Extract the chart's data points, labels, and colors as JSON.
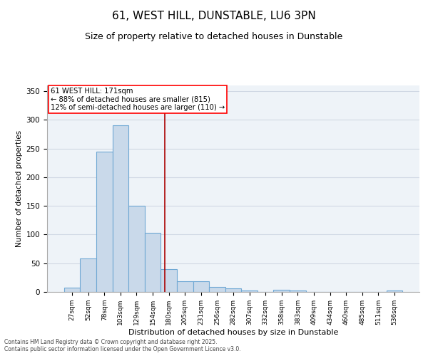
{
  "title": "61, WEST HILL, DUNSTABLE, LU6 3PN",
  "subtitle": "Size of property relative to detached houses in Dunstable",
  "xlabel": "Distribution of detached houses by size in Dunstable",
  "ylabel": "Number of detached properties",
  "footer_line1": "Contains HM Land Registry data © Crown copyright and database right 2025.",
  "footer_line2": "Contains public sector information licensed under the Open Government Licence v3.0.",
  "categories": [
    "27sqm",
    "52sqm",
    "78sqm",
    "103sqm",
    "129sqm",
    "154sqm",
    "180sqm",
    "205sqm",
    "231sqm",
    "256sqm",
    "282sqm",
    "307sqm",
    "332sqm",
    "358sqm",
    "383sqm",
    "409sqm",
    "434sqm",
    "460sqm",
    "485sqm",
    "511sqm",
    "536sqm"
  ],
  "values": [
    7,
    58,
    245,
    290,
    150,
    103,
    40,
    19,
    19,
    9,
    6,
    3,
    0,
    4,
    2,
    0,
    0,
    0,
    0,
    0,
    2
  ],
  "bar_color": "#c9d9ea",
  "bar_edge_color": "#6fa8d4",
  "ylim": [
    0,
    360
  ],
  "yticks": [
    0,
    50,
    100,
    150,
    200,
    250,
    300,
    350
  ],
  "property_line_x": 5.77,
  "property_label": "61 WEST HILL: 171sqm",
  "annotation_line2": "← 88% of detached houses are smaller (815)",
  "annotation_line3": "12% of semi-detached houses are larger (110) →",
  "grid_color": "#d0d8e4",
  "background_color": "#eef3f8",
  "title_fontsize": 11,
  "subtitle_fontsize": 9
}
